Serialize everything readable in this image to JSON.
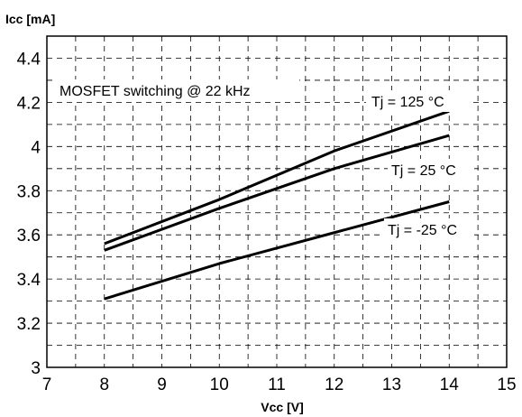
{
  "chart_data": {
    "type": "line",
    "ylabel": "Icc [mA]",
    "xlabel": "Vcc [V]",
    "xlim": [
      7,
      15
    ],
    "ylim": [
      3,
      4.5
    ],
    "xticks": [
      "7",
      "8",
      "9",
      "10",
      "11",
      "12",
      "13",
      "14",
      "15"
    ],
    "yticks": [
      "3",
      "3.2",
      "3.4",
      "3.6",
      "3.8",
      "4",
      "4.2",
      "4.4"
    ],
    "grid": true,
    "annotation": "MOSFET switching @ 22 kHz",
    "series": [
      {
        "name": "Tj = 125 °C",
        "x": [
          8,
          10,
          12,
          14
        ],
        "y": [
          3.56,
          3.76,
          3.98,
          4.16
        ]
      },
      {
        "name": "Tj = 25 °C",
        "x": [
          8,
          10,
          12,
          14
        ],
        "y": [
          3.53,
          3.72,
          3.9,
          4.05
        ]
      },
      {
        "name": "Tj = -25 °C",
        "x": [
          8,
          10,
          12,
          14
        ],
        "y": [
          3.31,
          3.47,
          3.61,
          3.75
        ]
      }
    ]
  }
}
